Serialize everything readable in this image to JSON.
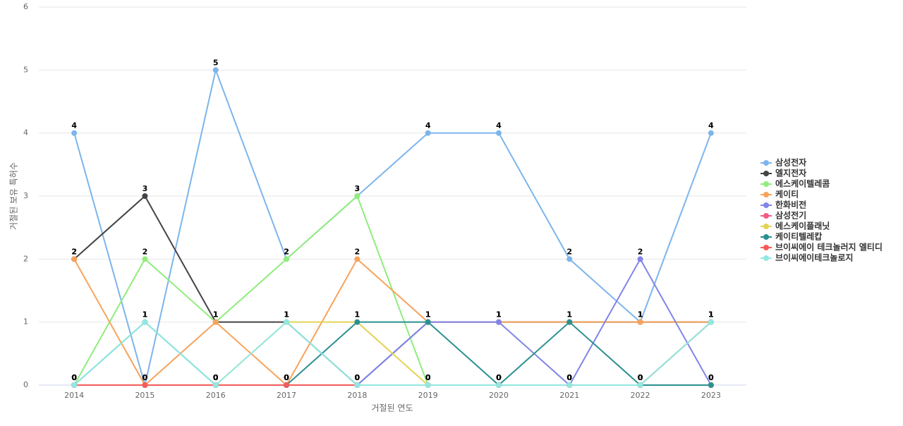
{
  "chart_data": {
    "type": "line",
    "x_label": "거절된 연도",
    "y_label": "거절된 보유 특허수",
    "categories": [
      "2014",
      "2015",
      "2016",
      "2017",
      "2018",
      "2019",
      "2020",
      "2021",
      "2022",
      "2023"
    ],
    "ylim": [
      0,
      6
    ],
    "yticks": [
      0,
      1,
      2,
      3,
      4,
      5,
      6
    ],
    "grid": true,
    "legend": "right",
    "series": [
      {
        "name": "삼성전자",
        "color": "#7cb5ec",
        "values": [
          4,
          0,
          5,
          2,
          3,
          4,
          4,
          2,
          1,
          4
        ]
      },
      {
        "name": "엘지전자",
        "color": "#434348",
        "values": [
          2,
          3,
          1,
          1,
          0,
          1,
          1,
          1,
          1,
          1
        ]
      },
      {
        "name": "에스케이텔레콤",
        "color": "#90ed7d",
        "values": [
          0,
          2,
          1,
          2,
          3,
          0,
          0,
          0,
          0,
          1
        ]
      },
      {
        "name": "케이티",
        "color": "#f7a35c",
        "values": [
          2,
          0,
          1,
          0,
          2,
          1,
          1,
          1,
          1,
          1
        ]
      },
      {
        "name": "한화비전",
        "color": "#8085e9",
        "values": [
          0,
          0,
          0,
          0,
          0,
          1,
          1,
          0,
          2,
          0
        ]
      },
      {
        "name": "삼성전기",
        "color": "#f15c80",
        "values": [
          0,
          0,
          0,
          0,
          0,
          0,
          0,
          0,
          0,
          0
        ]
      },
      {
        "name": "에스케이플래닛",
        "color": "#e4d354",
        "values": [
          0,
          0,
          0,
          1,
          1,
          0,
          0,
          0,
          0,
          0
        ]
      },
      {
        "name": "케이티텔레캅",
        "color": "#2b908f",
        "values": [
          0,
          1,
          0,
          0,
          1,
          1,
          0,
          1,
          0,
          0
        ]
      },
      {
        "name": "브이씨에이 테크놀러지 엘티디",
        "color": "#f45b5b",
        "values": [
          0,
          0,
          0,
          0,
          0,
          0,
          0,
          0,
          0,
          1
        ]
      },
      {
        "name": "브이씨에이테크놀로지",
        "color": "#91e8e1",
        "values": [
          0,
          1,
          0,
          1,
          0,
          0,
          0,
          0,
          0,
          1
        ]
      }
    ]
  }
}
